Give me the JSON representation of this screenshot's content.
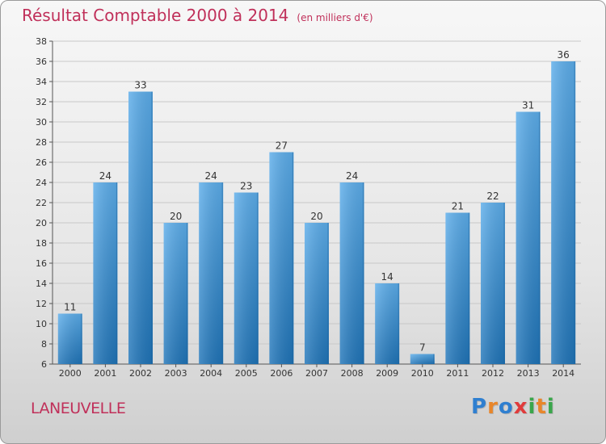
{
  "title": "Résultat Comptable 2000 à 2014",
  "title_unit": "(en milliers d'€)",
  "place": "LANEUVELLE",
  "logo": {
    "text": "Proxiti",
    "letters": [
      {
        "ch": "P",
        "color": "#2f7fd0"
      },
      {
        "ch": "r",
        "color": "#e8862a"
      },
      {
        "ch": "o",
        "color": "#2f7fd0"
      },
      {
        "ch": "x",
        "color": "#e03b3b"
      },
      {
        "ch": "i",
        "color": "#3aa64b"
      },
      {
        "ch": "t",
        "color": "#e8862a"
      },
      {
        "ch": "i",
        "color": "#3aa64b"
      }
    ]
  },
  "colors": {
    "title": "#c0305a",
    "bar_top": "#5aacea",
    "bar_bottom": "#1f74b8",
    "grid": "#c8c8c8"
  },
  "chart_data": {
    "type": "bar",
    "title": "Résultat Comptable 2000 à 2014",
    "subtitle": "(en milliers d'€)",
    "categories": [
      "2000",
      "2001",
      "2002",
      "2003",
      "2004",
      "2005",
      "2006",
      "2007",
      "2008",
      "2009",
      "2010",
      "2011",
      "2012",
      "2013",
      "2014"
    ],
    "values": [
      11,
      24,
      33,
      20,
      24,
      23,
      27,
      20,
      24,
      14,
      7,
      21,
      22,
      31,
      36
    ],
    "ylim": [
      6,
      38
    ],
    "yticks": [
      6,
      8,
      10,
      12,
      14,
      16,
      18,
      20,
      22,
      24,
      26,
      28,
      30,
      32,
      34,
      36,
      38
    ],
    "grid": true,
    "xlabel": "",
    "ylabel": ""
  }
}
